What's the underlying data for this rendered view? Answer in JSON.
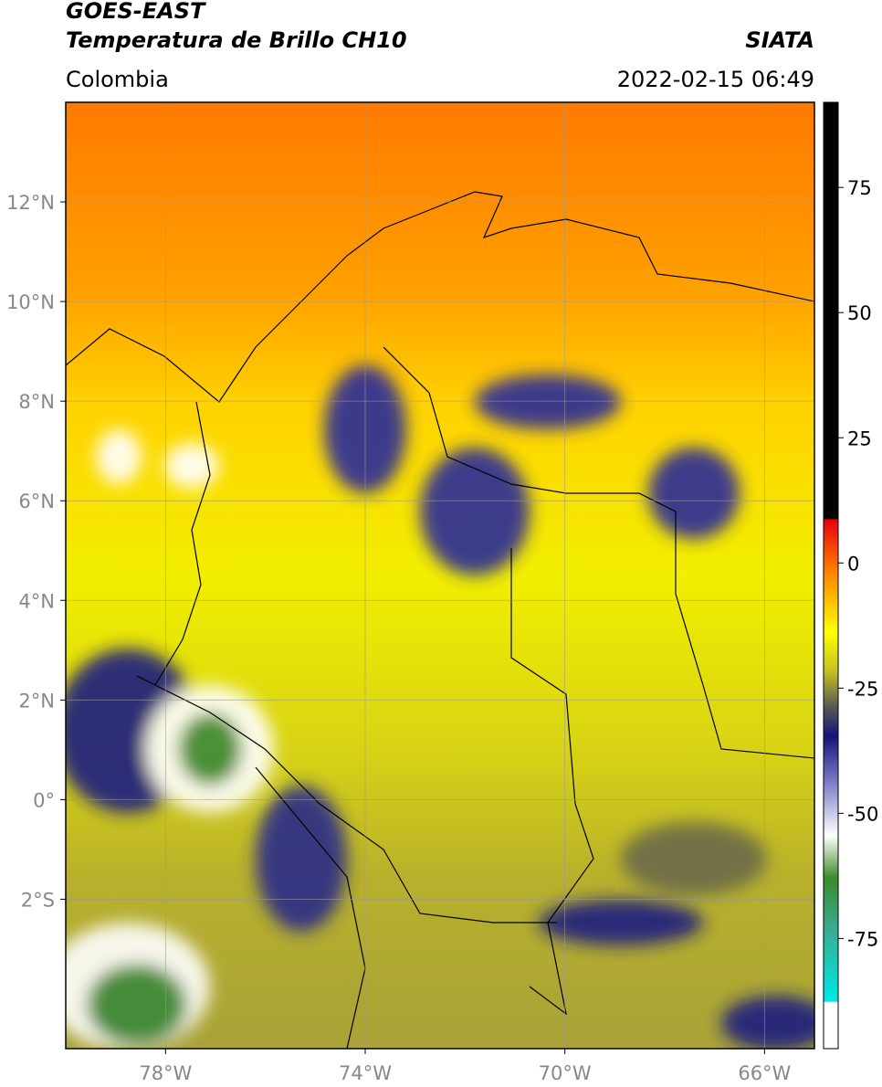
{
  "header": {
    "source": "GOES-EAST",
    "title": "Temperatura de Brillo CH10",
    "agency": "SIATA",
    "region": "Colombia",
    "datetime": "2022-02-15 06:49"
  },
  "map": {
    "lonlim": [
      -80,
      -65
    ],
    "latlim": [
      -5,
      14
    ],
    "lat_ticks": [
      {
        "value": 12,
        "label": "12°N"
      },
      {
        "value": 10,
        "label": "10°N"
      },
      {
        "value": 8,
        "label": "8°N"
      },
      {
        "value": 6,
        "label": "6°N"
      },
      {
        "value": 4,
        "label": "4°N"
      },
      {
        "value": 2,
        "label": "2°N"
      },
      {
        "value": 0,
        "label": "0°"
      },
      {
        "value": -2,
        "label": "2°S"
      }
    ],
    "lon_ticks": [
      {
        "value": -78,
        "label": "78°W"
      },
      {
        "value": -74,
        "label": "74°W"
      },
      {
        "value": -70,
        "label": "70°W"
      },
      {
        "value": -66,
        "label": "66°W"
      }
    ],
    "grid": true
  },
  "colorbar": {
    "range": [
      -97,
      92
    ],
    "ticks": [
      75,
      50,
      25,
      0,
      -25,
      -50,
      -75
    ]
  }
}
